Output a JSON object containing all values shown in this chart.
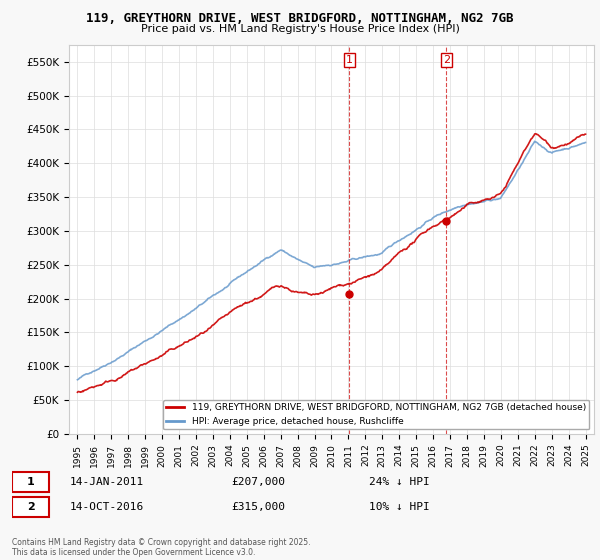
{
  "title1": "119, GREYTHORN DRIVE, WEST BRIDGFORD, NOTTINGHAM, NG2 7GB",
  "title2": "Price paid vs. HM Land Registry's House Price Index (HPI)",
  "ylim": [
    0,
    575000
  ],
  "yticks": [
    0,
    50000,
    100000,
    150000,
    200000,
    250000,
    300000,
    350000,
    400000,
    450000,
    500000,
    550000
  ],
  "xlim_start": 1994.5,
  "xlim_end": 2025.5,
  "sale1_date": 2011.04,
  "sale1_price": 207000,
  "sale2_date": 2016.79,
  "sale2_price": 315000,
  "line_color_price": "#cc0000",
  "line_color_hpi": "#6699cc",
  "vline_color": "#cc0000",
  "legend1": "119, GREYTHORN DRIVE, WEST BRIDGFORD, NOTTINGHAM, NG2 7GB (detached house)",
  "legend2": "HPI: Average price, detached house, Rushcliffe",
  "annotation1_date": "14-JAN-2011",
  "annotation1_price": "£207,000",
  "annotation1_info": "24% ↓ HPI",
  "annotation2_date": "14-OCT-2016",
  "annotation2_price": "£315,000",
  "annotation2_info": "10% ↓ HPI",
  "footnote": "Contains HM Land Registry data © Crown copyright and database right 2025.\nThis data is licensed under the Open Government Licence v3.0.",
  "plot_bg": "#ffffff"
}
